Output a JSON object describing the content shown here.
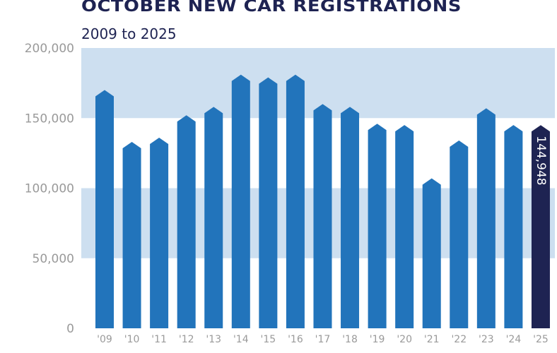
{
  "chart_data": {
    "type": "bar",
    "title": "OCTOBER NEW CAR REGISTRATIONS",
    "subtitle": "2009 to 2025",
    "categories": [
      "'09",
      "'10",
      "'11",
      "'12",
      "'13",
      "'14",
      "'15",
      "'16",
      "'17",
      "'18",
      "'19",
      "'20",
      "'21",
      "'22",
      "'23",
      "'24",
      "'25"
    ],
    "values": [
      170000,
      133000,
      136000,
      152000,
      158000,
      181000,
      179000,
      181000,
      160000,
      158000,
      146000,
      145000,
      107000,
      134000,
      157000,
      145000,
      144948
    ],
    "highlight": {
      "index": 16,
      "label": "144,948",
      "color": "#1e2352"
    },
    "ylim": [
      0,
      200000
    ],
    "yticks": [
      "0",
      "50,000",
      "100,000",
      "150,000",
      "200,000"
    ],
    "grid": "alternating horizontal bands",
    "colors": {
      "bar": "#2274bb",
      "band": "#cddff0",
      "highlight": "#1e2352",
      "axis_text": "#9a9a9a"
    }
  }
}
